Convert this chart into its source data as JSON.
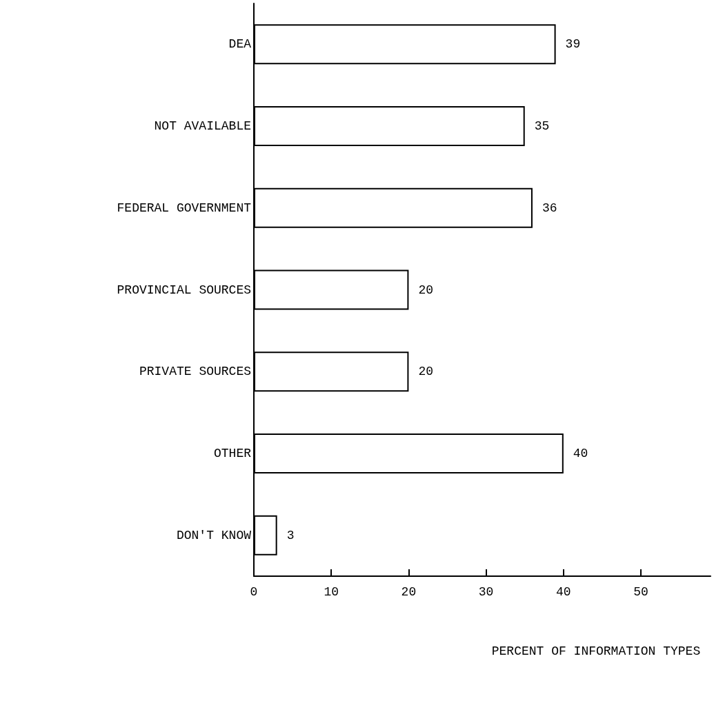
{
  "chart_data": {
    "type": "bar",
    "orientation": "horizontal",
    "xlabel": "PERCENT OF INFORMATION TYPES",
    "categories": [
      "DEA",
      "NOT AVAILABLE",
      "FEDERAL GOVERNMENT",
      "PROVINCIAL SOURCES",
      "PRIVATE SOURCES",
      "OTHER",
      "DON'T KNOW"
    ],
    "values": [
      39,
      35,
      36,
      20,
      20,
      40,
      3
    ],
    "color": "#ffffff",
    "xlim": [
      0,
      59
    ],
    "xticks": [
      0,
      10,
      20,
      30,
      40,
      50
    ],
    "data_labels": true,
    "grid": false
  }
}
